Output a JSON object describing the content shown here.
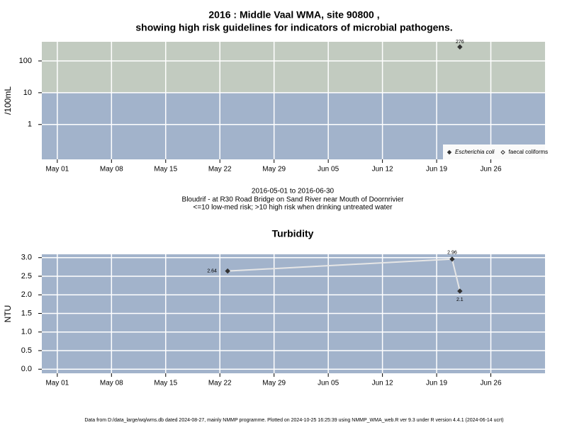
{
  "chart_data": [
    {
      "type": "scatter",
      "title": "2016 : Middle Vaal WMA, site 90800 ,",
      "subtitle": "showing high risk guidelines for indicators of microbial pathogens.",
      "y_label": "/100mL",
      "log_scale": true,
      "grid": true,
      "threshold": 10,
      "band_colors": [
        "#a2b3cb",
        "#c2cbc0"
      ],
      "xlim": [
        "2016-04-29",
        "2016-07-03"
      ],
      "xticks": [
        {
          "value": "2016-05-01",
          "label": "May 01"
        },
        {
          "value": "2016-05-08",
          "label": "May 08"
        },
        {
          "value": "2016-05-15",
          "label": "May 15"
        },
        {
          "value": "2016-05-22",
          "label": "May 22"
        },
        {
          "value": "2016-05-29",
          "label": "May 29"
        },
        {
          "value": "2016-06-05",
          "label": "Jun 05"
        },
        {
          "value": "2016-06-12",
          "label": "Jun 12"
        },
        {
          "value": "2016-06-19",
          "label": "Jun 19"
        },
        {
          "value": "2016-06-26",
          "label": "Jun 26"
        }
      ],
      "ylim": [
        0.08,
        400
      ],
      "yticks": [
        1,
        10,
        100
      ],
      "legend": "bottom-right",
      "series": [
        {
          "name": "Escherichia coli",
          "color": "#333333",
          "marker": "filled",
          "x": [
            "2016-06-22"
          ],
          "values": [
            276
          ]
        },
        {
          "name": "faecal coliforms",
          "color": "#333333",
          "marker": "open",
          "x": [],
          "values": []
        }
      ],
      "caption": [
        "2016-05-01 to 2016-06-30",
        "Bloudrif - at R30 Road Bridge on Sand River near Mouth of Doornrivier",
        "<=10 low-med risk; >10 high risk when drinking untreated water"
      ]
    },
    {
      "type": "line",
      "title": "Turbidity",
      "y_label": "NTU",
      "grid": true,
      "background": "#a2b3cb",
      "xlim": [
        "2016-04-29",
        "2016-07-03"
      ],
      "xticks": [
        {
          "value": "2016-05-01",
          "label": "May 01"
        },
        {
          "value": "2016-05-08",
          "label": "May 08"
        },
        {
          "value": "2016-05-15",
          "label": "May 15"
        },
        {
          "value": "2016-05-22",
          "label": "May 22"
        },
        {
          "value": "2016-05-29",
          "label": "May 29"
        },
        {
          "value": "2016-06-05",
          "label": "Jun 05"
        },
        {
          "value": "2016-06-12",
          "label": "Jun 12"
        },
        {
          "value": "2016-06-19",
          "label": "Jun 19"
        },
        {
          "value": "2016-06-26",
          "label": "Jun 26"
        }
      ],
      "ylim": [
        -0.11,
        3.09
      ],
      "yticks": [
        {
          "value": 0,
          "label": "0.0"
        },
        {
          "value": 0.5,
          "label": "0.5"
        },
        {
          "value": 1,
          "label": "1.0"
        },
        {
          "value": 1.5,
          "label": "1.5"
        },
        {
          "value": 2,
          "label": "2.0"
        },
        {
          "value": 2.5,
          "label": "2.5"
        },
        {
          "value": 3,
          "label": "3.0"
        }
      ],
      "series": [
        {
          "name": "Turbidity",
          "color": "#e6e6e6",
          "marker_color": "#333333",
          "x": [
            "2016-05-23",
            "2016-06-21",
            "2016-06-22"
          ],
          "values": [
            2.64,
            2.96,
            2.1
          ]
        }
      ]
    }
  ],
  "footer": "Data from D:/data_large/wq/wms.db dated 2024-08-27, mainly NMMP programme. Plotted on 2024-10-25 16:25:39 using NMMP_WMA_web.R ver 9.3 under R version 4.4.1 (2024-06-14 ucrt)"
}
